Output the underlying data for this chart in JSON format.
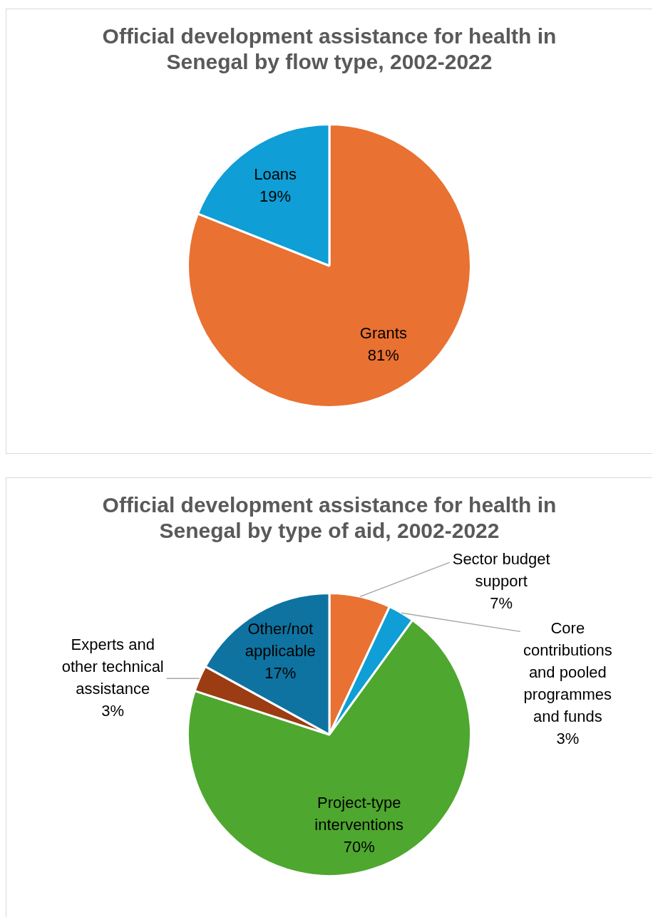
{
  "chart_data": [
    {
      "type": "pie",
      "title": "Official development assistance for health in Senegal by flow type, 2002-2022",
      "categories": [
        "Grants",
        "Loans"
      ],
      "values": [
        81,
        19
      ],
      "value_labels": [
        "81%",
        "19%"
      ],
      "colors": [
        "#e97132",
        "#0f9ed5"
      ],
      "legend": false
    },
    {
      "type": "pie",
      "title": "Official development assistance for health in Senegal by type of aid, 2002-2022",
      "categories": [
        "Sector budget support",
        "Core contributions and pooled programmes and funds",
        "Project-type interventions",
        "Experts and other technical assistance",
        "Other/not applicable"
      ],
      "values": [
        7,
        3,
        70,
        3,
        17
      ],
      "value_labels": [
        "7%",
        "3%",
        "70%",
        "3%",
        "17%"
      ],
      "colors": [
        "#e97132",
        "#0f9ed5",
        "#4ea72e",
        "#9b3c13",
        "#0e73a0"
      ],
      "legend": false
    }
  ]
}
